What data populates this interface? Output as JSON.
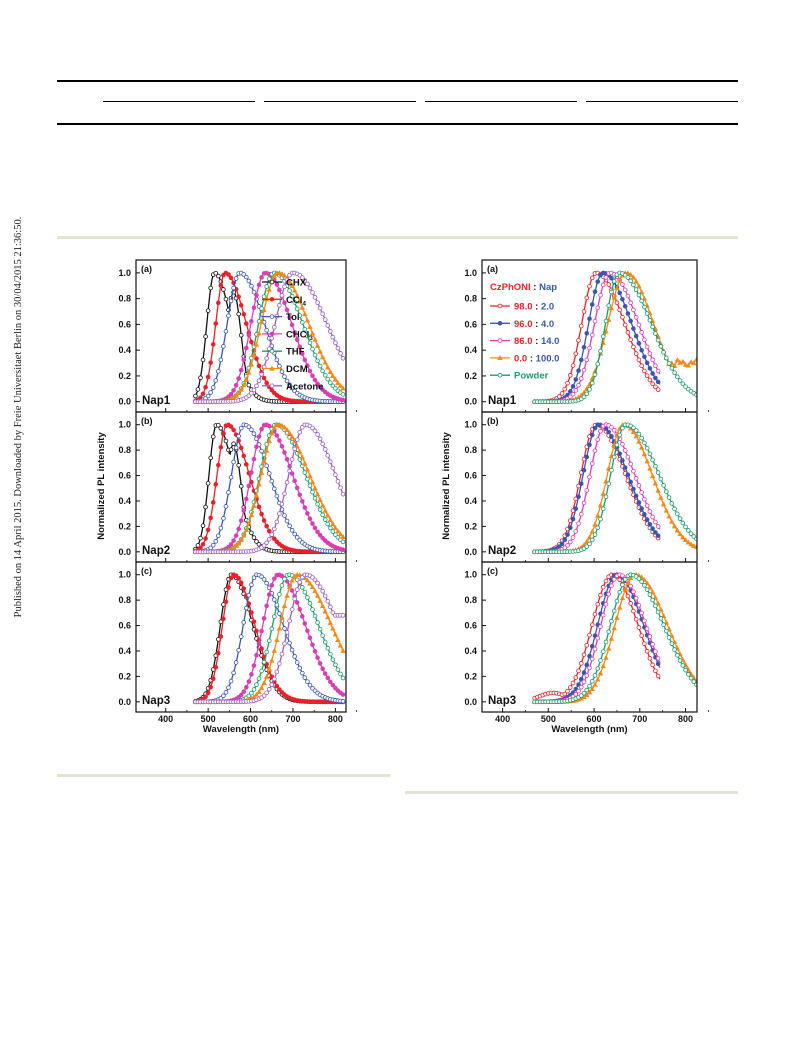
{
  "watermark": "Published on 14 April 2015. Downloaded by Freie Universitaet Berlin on 30/04/2015 21:36:50.",
  "colors": {
    "black": "#111111",
    "red": "#e8212b",
    "blue": "#3a57b0",
    "magenta": "#d640b4",
    "green": "#1c9a6a",
    "orange": "#f28a1a",
    "purple": "#9a5fc2"
  },
  "chart_data": [
    {
      "type": "line",
      "figure": "left",
      "ylabel": "Normalized PL intensity",
      "xlabel": "Wavelength (nm)",
      "xlim": [
        330,
        825
      ],
      "ylim": [
        -0.08,
        1.1
      ],
      "xticks": [
        "400",
        "500",
        "600",
        "700",
        "800"
      ],
      "yticks": [
        "0.0",
        "0.2",
        "0.4",
        "0.6",
        "0.8",
        "1.0"
      ],
      "legend": {
        "placement": "top-right",
        "entries": [
          {
            "label": "CHX",
            "color": "#111111"
          },
          {
            "label": "CCl",
            "sub": "4",
            "color": "#e8212b"
          },
          {
            "label": "Tol",
            "color": "#3a57b0"
          },
          {
            "label": "CHCl",
            "sub": "3",
            "color": "#d640b4"
          },
          {
            "label": "THF",
            "color": "#1c9a6a"
          },
          {
            "label": "DCM",
            "color": "#f28a1a"
          },
          {
            "label": "Acetone",
            "color": "#9a5fc2"
          }
        ]
      },
      "panels": [
        {
          "letter": "(a)",
          "name": "Nap1",
          "series": [
            {
              "color": "#111111",
              "peak": 515,
              "sigma": [
                18,
                40
              ],
              "start": 470,
              "end": 820,
              "shoulder": [
                560,
                0.85,
                18
              ]
            },
            {
              "color": "#e8212b",
              "peak": 540,
              "sigma": [
                22,
                50
              ],
              "start": 470,
              "end": 820
            },
            {
              "color": "#3a57b0",
              "peak": 575,
              "sigma": [
                30,
                58
              ],
              "start": 470,
              "end": 820
            },
            {
              "color": "#d640b4",
              "peak": 635,
              "sigma": [
                34,
                62
              ],
              "start": 470,
              "end": 820
            },
            {
              "color": "#1c9a6a",
              "peak": 655,
              "sigma": [
                36,
                68
              ],
              "start": 470,
              "end": 820
            },
            {
              "color": "#f28a1a",
              "peak": 665,
              "sigma": [
                40,
                72
              ],
              "start": 470,
              "end": 820
            },
            {
              "color": "#9a5fc2",
              "peak": 700,
              "sigma": [
                42,
                80
              ],
              "start": 470,
              "end": 820
            }
          ]
        },
        {
          "letter": "(b)",
          "name": "Nap2",
          "series": [
            {
              "color": "#111111",
              "peak": 520,
              "sigma": [
                18,
                42
              ],
              "start": 470,
              "end": 820,
              "shoulder": [
                560,
                0.85,
                18
              ]
            },
            {
              "color": "#e8212b",
              "peak": 545,
              "sigma": [
                24,
                52
              ],
              "start": 470,
              "end": 820
            },
            {
              "color": "#3a57b0",
              "peak": 585,
              "sigma": [
                30,
                60
              ],
              "start": 470,
              "end": 820
            },
            {
              "color": "#d640b4",
              "peak": 635,
              "sigma": [
                34,
                64
              ],
              "start": 470,
              "end": 820
            },
            {
              "color": "#1c9a6a",
              "peak": 660,
              "sigma": [
                38,
                70
              ],
              "start": 470,
              "end": 820
            },
            {
              "color": "#f28a1a",
              "peak": 665,
              "sigma": [
                40,
                74
              ],
              "start": 470,
              "end": 820
            },
            {
              "color": "#9a5fc2",
              "peak": 730,
              "sigma": [
                40,
                70
              ],
              "start": 470,
              "end": 820
            }
          ]
        },
        {
          "letter": "(c)",
          "name": "Nap3",
          "series": [
            {
              "color": "#111111",
              "peak": 555,
              "sigma": [
                26,
                50
              ],
              "start": 470,
              "end": 820,
              "shoulder": [
                585,
                0.85,
                20
              ]
            },
            {
              "color": "#e8212b",
              "peak": 560,
              "sigma": [
                26,
                50
              ],
              "start": 470,
              "end": 820
            },
            {
              "color": "#3a57b0",
              "peak": 615,
              "sigma": [
                32,
                62
              ],
              "start": 470,
              "end": 820
            },
            {
              "color": "#d640b4",
              "peak": 665,
              "sigma": [
                36,
                64
              ],
              "start": 470,
              "end": 820
            },
            {
              "color": "#1c9a6a",
              "peak": 690,
              "sigma": [
                38,
                70
              ],
              "start": 470,
              "end": 820
            },
            {
              "color": "#f28a1a",
              "peak": 710,
              "sigma": [
                40,
                80
              ],
              "start": 470,
              "end": 820
            },
            {
              "color": "#9a5fc2",
              "peak": 730,
              "sigma": [
                40,
                76
              ],
              "start": 470,
              "end": 820,
              "plateau": [
                800,
                0.68
              ]
            }
          ]
        }
      ]
    },
    {
      "type": "line",
      "figure": "right",
      "ylabel": "Normalized PL intensity",
      "xlabel": "Wavelength (nm)",
      "xlim": [
        355,
        825
      ],
      "ylim": [
        -0.08,
        1.1
      ],
      "xticks": [
        "400",
        "500",
        "600",
        "700",
        "800"
      ],
      "yticks": [
        "0.0",
        "0.2",
        "0.4",
        "0.6",
        "0.8",
        "1.0"
      ],
      "legend": {
        "placement": "top-left",
        "header": [
          {
            "text": "CzPhONI",
            "color": "#e8212b"
          },
          {
            "text": " : ",
            "color": "#111111"
          },
          {
            "text": "Nap",
            "color": "#3a57b0"
          }
        ],
        "entries": [
          {
            "color": "#e8212b",
            "parts": [
              {
                "text": "98.0",
                "color": "#e8212b"
              },
              {
                "text": " : ",
                "color": "#111111"
              },
              {
                "text": "2.0",
                "color": "#3a57b0"
              }
            ]
          },
          {
            "color": "#3a57b0",
            "parts": [
              {
                "text": "96.0",
                "color": "#e8212b"
              },
              {
                "text": " : ",
                "color": "#111111"
              },
              {
                "text": "4.0",
                "color": "#3a57b0"
              }
            ]
          },
          {
            "color": "#d640b4",
            "parts": [
              {
                "text": "86.0",
                "color": "#e8212b"
              },
              {
                "text": " : ",
                "color": "#111111"
              },
              {
                "text": "14.0",
                "color": "#3a57b0"
              }
            ]
          },
          {
            "color": "#f28a1a",
            "parts": [
              {
                "text": "0.0",
                "color": "#e8212b"
              },
              {
                "text": " : ",
                "color": "#111111"
              },
              {
                "text": "100.0",
                "color": "#3a57b0"
              }
            ]
          },
          {
            "color": "#1c9a6a",
            "parts": [
              {
                "text": "Powder",
                "color": "#1c9a6a"
              }
            ]
          }
        ]
      },
      "panels": [
        {
          "letter": "(a)",
          "name": "Nap1",
          "series": [
            {
              "color": "#e8212b",
              "peak": 605,
              "sigma": [
                32,
                62
              ],
              "start": 470,
              "end": 745
            },
            {
              "color": "#3a57b0",
              "peak": 620,
              "sigma": [
                32,
                62
              ],
              "start": 470,
              "end": 745
            },
            {
              "color": "#d640b4",
              "peak": 635,
              "sigma": [
                34,
                62
              ],
              "start": 470,
              "end": 745
            },
            {
              "color": "#f28a1a",
              "peak": 670,
              "sigma": [
                40,
                60
              ],
              "start": 470,
              "end": 825,
              "plateau": [
                760,
                0.3
              ],
              "noise": true
            },
            {
              "color": "#1c9a6a",
              "peak": 655,
              "sigma": [
                30,
                70
              ],
              "start": 470,
              "end": 825
            }
          ]
        },
        {
          "letter": "(b)",
          "name": "Nap2",
          "series": [
            {
              "color": "#e8212b",
              "peak": 605,
              "sigma": [
                34,
                64
              ],
              "start": 470,
              "end": 745
            },
            {
              "color": "#3a57b0",
              "peak": 610,
              "sigma": [
                34,
                64
              ],
              "start": 470,
              "end": 745
            },
            {
              "color": "#d640b4",
              "peak": 625,
              "sigma": [
                34,
                64
              ],
              "start": 470,
              "end": 745
            },
            {
              "color": "#f28a1a",
              "peak": 665,
              "sigma": [
                36,
                62
              ],
              "start": 470,
              "end": 825
            },
            {
              "color": "#1c9a6a",
              "peak": 670,
              "sigma": [
                34,
                72
              ],
              "start": 470,
              "end": 825
            }
          ]
        },
        {
          "letter": "(c)",
          "name": "Nap3",
          "series": [
            {
              "color": "#e8212b",
              "peak": 640,
              "sigma": [
                44,
                56
              ],
              "start": 470,
              "end": 745,
              "bump": [
                510,
                0.07,
                30
              ]
            },
            {
              "color": "#3a57b0",
              "peak": 650,
              "sigma": [
                42,
                58
              ],
              "start": 470,
              "end": 745
            },
            {
              "color": "#d640b4",
              "peak": 655,
              "sigma": [
                40,
                58
              ],
              "start": 470,
              "end": 745
            },
            {
              "color": "#f28a1a",
              "peak": 690,
              "sigma": [
                44,
                70
              ],
              "start": 470,
              "end": 825
            },
            {
              "color": "#1c9a6a",
              "peak": 680,
              "sigma": [
                44,
                72
              ],
              "start": 470,
              "end": 825
            }
          ]
        }
      ]
    }
  ]
}
